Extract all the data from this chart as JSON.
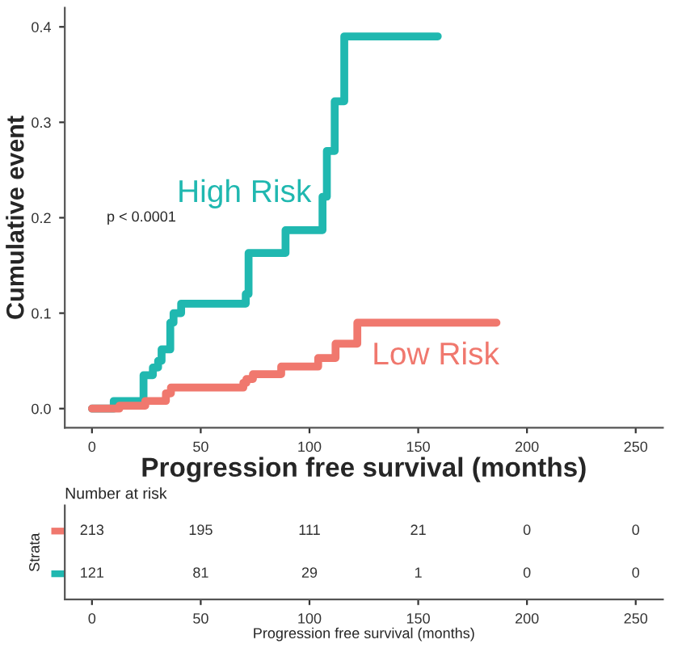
{
  "chart_data": [
    {
      "type": "step",
      "xlabel": "Progression free survival (months)",
      "ylabel": "Cumulative event",
      "xlim": [
        -12.5,
        262.5
      ],
      "ylim": [
        -0.02,
        0.42
      ],
      "xticks": [
        0,
        50,
        100,
        150,
        200,
        250
      ],
      "yticks": [
        {
          "value": 0,
          "label": "0.0"
        },
        0.1,
        0.2,
        0.3,
        0.4
      ],
      "grid": false,
      "legend": false,
      "annotations": [
        "p < 0.0001"
      ],
      "series": [
        {
          "name": "High Risk",
          "color": "#20b8b0",
          "x": [
            0,
            10,
            23.7,
            28,
            30.4,
            32,
            36,
            37.5,
            41,
            70.7,
            72,
            89,
            106,
            108,
            111.6,
            116,
            159
          ],
          "values": [
            0,
            0.008,
            0.035,
            0.043,
            0.05,
            0.062,
            0.09,
            0.1,
            0.11,
            0.12,
            0.163,
            0.187,
            0.222,
            0.27,
            0.322,
            0.39,
            0.39
          ]
        },
        {
          "name": "Low Risk",
          "color": "#f0786e",
          "x": [
            0,
            12.6,
            24.5,
            34,
            36.3,
            69.6,
            71,
            74,
            87,
            104,
            112,
            122,
            186
          ],
          "values": [
            0,
            0.003,
            0.008,
            0.016,
            0.022,
            0.027,
            0.031,
            0.036,
            0.044,
            0.053,
            0.068,
            0.09,
            0.09
          ]
        }
      ]
    },
    {
      "type": "heatmap",
      "title": "Number at risk",
      "xlabel": "Progression free survival (months)",
      "ylabel": "Strata",
      "categories": [
        "0",
        "50",
        "100",
        "150",
        "200",
        "250"
      ],
      "y_categories": [
        null,
        null
      ],
      "colors": [
        "#f0786e",
        "#20b8b0"
      ],
      "data_labels": true,
      "cells": [
        [
          213,
          195,
          111,
          21,
          0,
          0
        ],
        [
          121,
          81,
          29,
          1,
          0,
          0
        ]
      ]
    }
  ]
}
